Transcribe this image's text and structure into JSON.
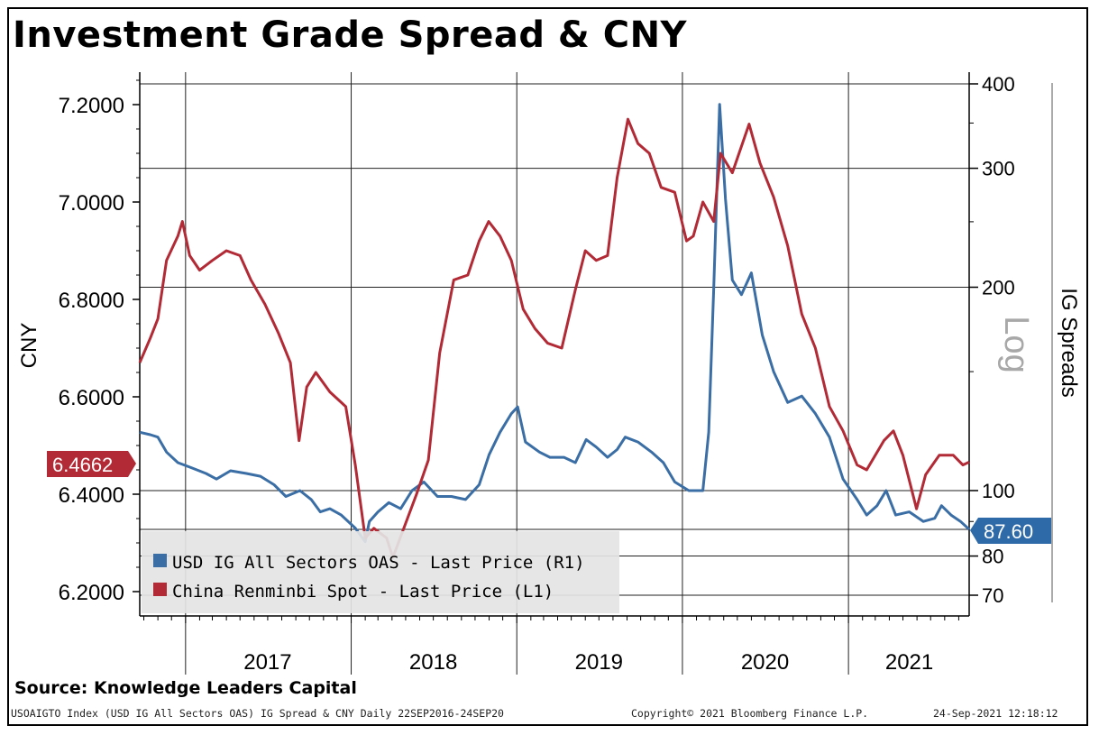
{
  "header": {
    "title": "Investment Grade Spread & CNY"
  },
  "source": "Source: Knowledge Leaders Capital",
  "footer": {
    "left": "USOAIGTO Index (USD IG All Sectors OAS) IG Spread & CNY  Daily 22SEP2016-24SEP20",
    "middle": "Copyright© 2021 Bloomberg Finance L.P.",
    "right": "24-Sep-2021 12:18:12"
  },
  "colors": {
    "cny": "#b22a35",
    "ig": "#3a6ea5",
    "grid": "#222222",
    "badge_cny": "#b22a35",
    "badge_ig": "#2f6aa8"
  },
  "chart_data": {
    "type": "line",
    "x_labels": [
      "2017",
      "2018",
      "2019",
      "2020",
      "2021"
    ],
    "left_axis": {
      "label": "CNY",
      "ticks": [
        "7.2000",
        "7.0000",
        "6.8000",
        "6.6000",
        "6.4000",
        "6.2000"
      ],
      "range": [
        6.15,
        7.3
      ]
    },
    "right_axis": {
      "label": "IG Spreads",
      "scale_note": "Log",
      "scale": "log",
      "ticks": [
        "400",
        "300",
        "200",
        "100",
        "80",
        "70"
      ],
      "range": [
        66,
        405
      ]
    },
    "series": [
      {
        "name": "USD IG All Sectors OAS - Last Price (R1)",
        "axis": "right",
        "last_value": "87.60",
        "points": [
          [
            "2016-09-22",
            122
          ],
          [
            "2016-10-15",
            121
          ],
          [
            "2016-11-01",
            120
          ],
          [
            "2016-11-20",
            114
          ],
          [
            "2016-12-15",
            110
          ],
          [
            "2017-01-15",
            108
          ],
          [
            "2017-02-15",
            106
          ],
          [
            "2017-03-10",
            104
          ],
          [
            "2017-04-10",
            107
          ],
          [
            "2017-05-15",
            106
          ],
          [
            "2017-06-15",
            105
          ],
          [
            "2017-07-15",
            102
          ],
          [
            "2017-08-10",
            98
          ],
          [
            "2017-09-10",
            100
          ],
          [
            "2017-10-05",
            97
          ],
          [
            "2017-10-25",
            93
          ],
          [
            "2017-11-15",
            94
          ],
          [
            "2017-12-10",
            92
          ],
          [
            "2018-01-10",
            88
          ],
          [
            "2018-02-01",
            84
          ],
          [
            "2018-02-10",
            90
          ],
          [
            "2018-03-01",
            93
          ],
          [
            "2018-03-25",
            96
          ],
          [
            "2018-04-20",
            94
          ],
          [
            "2018-05-15",
            100
          ],
          [
            "2018-06-10",
            103
          ],
          [
            "2018-07-10",
            98
          ],
          [
            "2018-08-10",
            98
          ],
          [
            "2018-09-10",
            97
          ],
          [
            "2018-10-10",
            102
          ],
          [
            "2018-11-01",
            113
          ],
          [
            "2018-11-25",
            122
          ],
          [
            "2018-12-20",
            130
          ],
          [
            "2019-01-03",
            133
          ],
          [
            "2019-01-20",
            118
          ],
          [
            "2019-02-20",
            114
          ],
          [
            "2019-03-15",
            112
          ],
          [
            "2019-04-15",
            112
          ],
          [
            "2019-05-10",
            110
          ],
          [
            "2019-06-03",
            119
          ],
          [
            "2019-06-25",
            116
          ],
          [
            "2019-07-20",
            112
          ],
          [
            "2019-08-10",
            115
          ],
          [
            "2019-08-28",
            120
          ],
          [
            "2019-09-25",
            118
          ],
          [
            "2019-10-25",
            114
          ],
          [
            "2019-11-20",
            110
          ],
          [
            "2019-12-15",
            103
          ],
          [
            "2020-01-15",
            100
          ],
          [
            "2020-02-15",
            100
          ],
          [
            "2020-02-28",
            122
          ],
          [
            "2020-03-10",
            200
          ],
          [
            "2020-03-23",
            373
          ],
          [
            "2020-04-05",
            270
          ],
          [
            "2020-04-20",
            205
          ],
          [
            "2020-05-10",
            195
          ],
          [
            "2020-06-01",
            210
          ],
          [
            "2020-06-25",
            170
          ],
          [
            "2020-07-20",
            150
          ],
          [
            "2020-08-20",
            135
          ],
          [
            "2020-09-20",
            138
          ],
          [
            "2020-10-20",
            130
          ],
          [
            "2020-11-20",
            120
          ],
          [
            "2020-12-20",
            104
          ],
          [
            "2021-01-20",
            97
          ],
          [
            "2021-02-10",
            92
          ],
          [
            "2021-03-05",
            95
          ],
          [
            "2021-03-25",
            100
          ],
          [
            "2021-04-15",
            92
          ],
          [
            "2021-05-15",
            93
          ],
          [
            "2021-06-15",
            90
          ],
          [
            "2021-07-10",
            91
          ],
          [
            "2021-07-25",
            95
          ],
          [
            "2021-08-15",
            92
          ],
          [
            "2021-09-05",
            90
          ],
          [
            "2021-09-24",
            87.6
          ]
        ]
      },
      {
        "name": "China Renminbi Spot - Last Price (L1)",
        "axis": "left",
        "last_value": "6.4662",
        "points": [
          [
            "2016-09-22",
            6.67
          ],
          [
            "2016-10-15",
            6.72
          ],
          [
            "2016-11-01",
            6.76
          ],
          [
            "2016-11-20",
            6.88
          ],
          [
            "2016-12-15",
            6.93
          ],
          [
            "2016-12-25",
            6.96
          ],
          [
            "2017-01-10",
            6.89
          ],
          [
            "2017-02-01",
            6.86
          ],
          [
            "2017-03-01",
            6.88
          ],
          [
            "2017-04-01",
            6.9
          ],
          [
            "2017-05-01",
            6.89
          ],
          [
            "2017-05-25",
            6.84
          ],
          [
            "2017-06-25",
            6.79
          ],
          [
            "2017-07-25",
            6.73
          ],
          [
            "2017-08-20",
            6.67
          ],
          [
            "2017-09-08",
            6.51
          ],
          [
            "2017-09-25",
            6.62
          ],
          [
            "2017-10-15",
            6.65
          ],
          [
            "2017-11-15",
            6.61
          ],
          [
            "2017-12-20",
            6.58
          ],
          [
            "2018-01-10",
            6.46
          ],
          [
            "2018-02-01",
            6.31
          ],
          [
            "2018-02-20",
            6.33
          ],
          [
            "2018-03-20",
            6.31
          ],
          [
            "2018-04-03",
            6.27
          ],
          [
            "2018-05-01",
            6.34
          ],
          [
            "2018-05-25",
            6.4
          ],
          [
            "2018-06-20",
            6.47
          ],
          [
            "2018-07-15",
            6.69
          ],
          [
            "2018-08-15",
            6.84
          ],
          [
            "2018-09-15",
            6.85
          ],
          [
            "2018-10-10",
            6.92
          ],
          [
            "2018-10-31",
            6.96
          ],
          [
            "2018-11-25",
            6.93
          ],
          [
            "2018-12-20",
            6.88
          ],
          [
            "2019-01-15",
            6.78
          ],
          [
            "2019-02-10",
            6.74
          ],
          [
            "2019-03-10",
            6.71
          ],
          [
            "2019-04-10",
            6.7
          ],
          [
            "2019-05-10",
            6.82
          ],
          [
            "2019-06-01",
            6.9
          ],
          [
            "2019-06-25",
            6.88
          ],
          [
            "2019-07-20",
            6.89
          ],
          [
            "2019-08-10",
            7.05
          ],
          [
            "2019-09-03",
            7.17
          ],
          [
            "2019-09-25",
            7.12
          ],
          [
            "2019-10-20",
            7.1
          ],
          [
            "2019-11-15",
            7.03
          ],
          [
            "2019-12-15",
            7.02
          ],
          [
            "2020-01-10",
            6.92
          ],
          [
            "2020-01-25",
            6.93
          ],
          [
            "2020-02-15",
            7.0
          ],
          [
            "2020-03-10",
            6.96
          ],
          [
            "2020-03-25",
            7.1
          ],
          [
            "2020-04-20",
            7.06
          ],
          [
            "2020-05-27",
            7.16
          ],
          [
            "2020-06-20",
            7.08
          ],
          [
            "2020-07-20",
            7.01
          ],
          [
            "2020-08-20",
            6.91
          ],
          [
            "2020-09-20",
            6.77
          ],
          [
            "2020-10-20",
            6.7
          ],
          [
            "2020-11-20",
            6.58
          ],
          [
            "2020-12-20",
            6.53
          ],
          [
            "2021-01-20",
            6.46
          ],
          [
            "2021-02-10",
            6.45
          ],
          [
            "2021-03-20",
            6.51
          ],
          [
            "2021-04-10",
            6.53
          ],
          [
            "2021-05-01",
            6.48
          ],
          [
            "2021-05-31",
            6.37
          ],
          [
            "2021-06-20",
            6.44
          ],
          [
            "2021-07-20",
            6.48
          ],
          [
            "2021-08-20",
            6.48
          ],
          [
            "2021-09-10",
            6.46
          ],
          [
            "2021-09-24",
            6.4662
          ]
        ]
      }
    ],
    "legend_position": "bottom-left",
    "grid": true
  }
}
